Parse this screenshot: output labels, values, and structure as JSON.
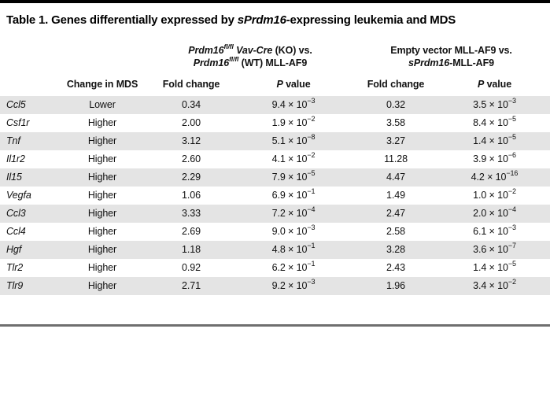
{
  "title": {
    "prefix": "Table 1. Genes differentially expressed by ",
    "italic": "sPrdm16",
    "suffix": "-expressing leukemia and MDS"
  },
  "header": {
    "group1": {
      "line1": {
        "i1": "Prdm16",
        "sup1": "fl/fl",
        "i2": " Vav-Cre",
        "rest": " (KO) vs."
      },
      "line2": {
        "i1": "Prdm16",
        "sup1": "fl/fl",
        "rest": " (WT) MLL-AF9"
      }
    },
    "group2": {
      "line1": "Empty vector MLL-AF9 vs.",
      "line2": {
        "i1": "sPrdm16",
        "rest": "-MLL-AF9"
      }
    },
    "columns": {
      "change": "Change in MDS",
      "fold1": "Fold change",
      "pval_p": "P",
      "pval_rest": " value",
      "fold2": "Fold change"
    }
  },
  "colors": {
    "stripe": "#e4e4e4",
    "top_rule": "#000000",
    "bottom_rule": "#6f6f6f"
  },
  "rows": [
    {
      "gene": "Ccl5",
      "change": "Lower",
      "fold1": "0.34",
      "p1base": "9.4 × 10",
      "p1exp": "−3",
      "fold2": "0.32",
      "p2base": "3.5 × 10",
      "p2exp": "−3"
    },
    {
      "gene": "Csf1r",
      "change": "Higher",
      "fold1": "2.00",
      "p1base": "1.9 × 10",
      "p1exp": "−2",
      "fold2": "3.58",
      "p2base": "8.4 × 10",
      "p2exp": "−5"
    },
    {
      "gene": "Tnf",
      "change": "Higher",
      "fold1": "3.12",
      "p1base": "5.1 × 10",
      "p1exp": "−8",
      "fold2": "3.27",
      "p2base": "1.4 × 10",
      "p2exp": "−5"
    },
    {
      "gene": "Il1r2",
      "change": "Higher",
      "fold1": "2.60",
      "p1base": "4.1 × 10",
      "p1exp": "−2",
      "fold2": "11.28",
      "p2base": "3.9 × 10",
      "p2exp": "−6"
    },
    {
      "gene": "Il15",
      "change": "Higher",
      "fold1": "2.29",
      "p1base": "7.9 × 10",
      "p1exp": "−5",
      "fold2": "4.47",
      "p2base": "4.2 × 10",
      "p2exp": "−16"
    },
    {
      "gene": "Vegfa",
      "change": "Higher",
      "fold1": "1.06",
      "p1base": "6.9 × 10",
      "p1exp": "−1",
      "fold2": "1.49",
      "p2base": "1.0 × 10",
      "p2exp": "−2"
    },
    {
      "gene": "Ccl3",
      "change": "Higher",
      "fold1": "3.33",
      "p1base": "7.2 × 10",
      "p1exp": "−4",
      "fold2": "2.47",
      "p2base": "2.0 × 10",
      "p2exp": "−4"
    },
    {
      "gene": "Ccl4",
      "change": "Higher",
      "fold1": "2.69",
      "p1base": "9.0 × 10",
      "p1exp": "−3",
      "fold2": "2.58",
      "p2base": "6.1 × 10",
      "p2exp": "−3"
    },
    {
      "gene": "Hgf",
      "change": "Higher",
      "fold1": "1.18",
      "p1base": "4.8 × 10",
      "p1exp": "−1",
      "fold2": "3.28",
      "p2base": "3.6 × 10",
      "p2exp": "−7"
    },
    {
      "gene": "Tlr2",
      "change": "Higher",
      "fold1": "0.92",
      "p1base": "6.2 × 10",
      "p1exp": "−1",
      "fold2": "2.43",
      "p2base": "1.4 × 10",
      "p2exp": "−5"
    },
    {
      "gene": "Tlr9",
      "change": "Higher",
      "fold1": "2.71",
      "p1base": "9.2 × 10",
      "p1exp": "−3",
      "fold2": "1.96",
      "p2base": "3.4 × 10",
      "p2exp": "−2"
    }
  ]
}
